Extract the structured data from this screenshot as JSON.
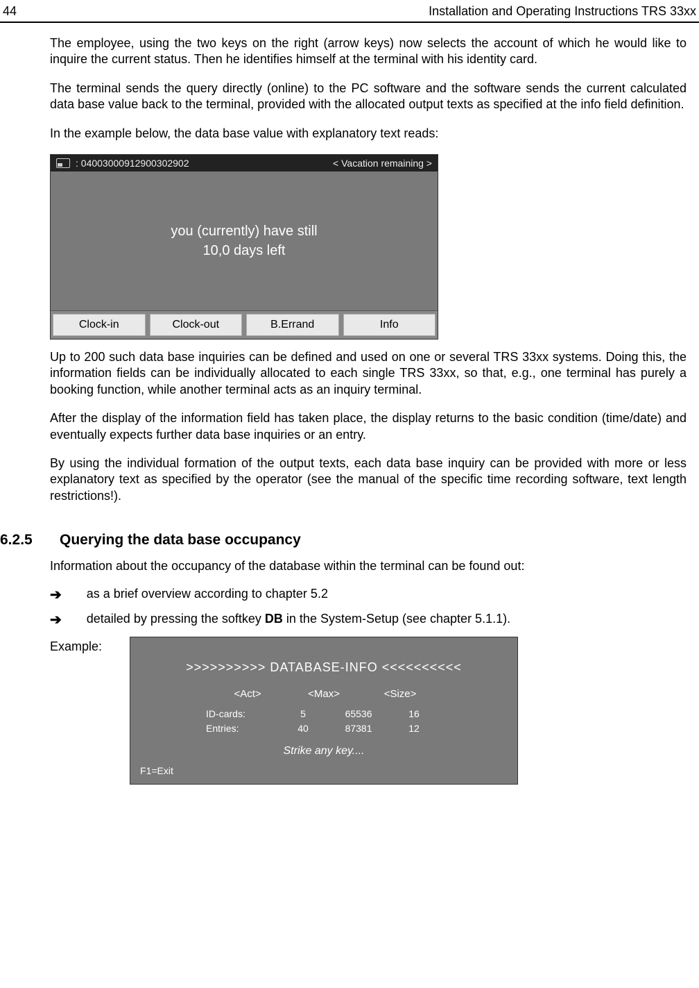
{
  "header": {
    "page_number": "44",
    "title": "Installation  and Operating Instructions TRS 33xx"
  },
  "paragraphs": {
    "p1": "The employee, using the two keys on the right (arrow keys) now selects the account of which he would like to inquire the current status. Then he identifies himself at the terminal with his identity card.",
    "p2": "The terminal sends the query directly (online) to the PC software and the software sends the current calculated data base value back to the terminal, provided with the allocated output texts as specified at the info field definition.",
    "p3": "In the example below, the data base value with explanatory text reads:",
    "p4": "Up to 200 such data base inquiries can be defined and used on one or several TRS 33xx systems. Doing this, the information fields can be individually allocated to each single TRS 33xx, so that, e.g., one terminal has purely a booking function, while another terminal acts as an inquiry terminal.",
    "p5": "After the display of the information field has taken place, the display returns to the basic  condition (time/date) and eventually expects further data base inquiries or an entry.",
    "p6": "By using the individual formation of the output texts, each data base inquiry can be provided with more or less explanatory text as specified by the operator (see the manual of the specific time recording software, text length restrictions!)."
  },
  "terminal1": {
    "header_id": ": 04003000912900302902",
    "header_info": "<  Vacation remaining  >",
    "line1": "you (currently) have still",
    "line2": "10,0 days left",
    "buttons": [
      "Clock-in",
      "Clock-out",
      "B.Errand",
      "Info"
    ]
  },
  "section": {
    "number": "6.2.5",
    "title": "Querying the data base occupancy",
    "intro": "Information about the occupancy of the database within the terminal can be found out:",
    "bullet1": "as a brief overview according to chapter 5.2",
    "bullet2_a": "detailed by pressing the softkey ",
    "bullet2_b": "DB",
    "bullet2_c": " in the System-Setup (see chapter 5.1.1).",
    "example_label": "Example:"
  },
  "terminal2": {
    "title": ">>>>>>>>>> DATABASE-INFO <<<<<<<<<<",
    "col1": "<Act>",
    "col2": "<Max>",
    "col3": "<Size>",
    "row1_label": "ID-cards:",
    "row1_c1": "5",
    "row1_c2": "65536",
    "row1_c3": "16",
    "row2_label": "Entries:",
    "row2_c1": "40",
    "row2_c2": "87381",
    "row2_c3": "12",
    "strike": "Strike any key....",
    "exit": "F1=Exit"
  }
}
